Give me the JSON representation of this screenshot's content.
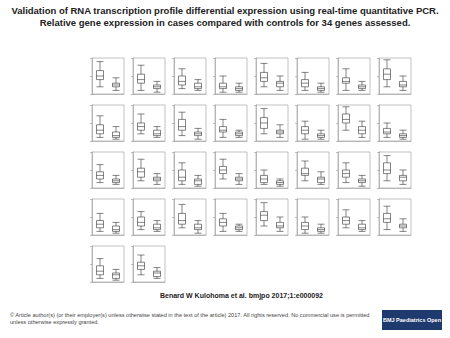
{
  "title": [
    "Validation of RNA transcription profile differential expression using real-time quantitative PCR.",
    "Relative gene expression in cases compared with controls for 34 genes assessed."
  ],
  "citation": "Benard W Kulohoma et al. bmjpo 2017;1:e000092",
  "copyright": "© Article author(s) (or their employer(s) unless otherwise stated in the text of the article) 2017. All rights reserved. No commercial use is permitted unless otherwise expressly granted.",
  "logo": "BMJ Paediatrics Open",
  "chart_data": [
    {
      "type": "boxplot",
      "categories": [
        null,
        null
      ],
      "values": [
        [
          2,
          4,
          5,
          6.5,
          9
        ],
        [
          1,
          2,
          2.5,
          3,
          4.5
        ]
      ],
      "color": "#333333",
      "ylim": [
        0,
        10
      ],
      "yticks": [
        0,
        5,
        10
      ],
      "tick_labels": false
    },
    {
      "type": "boxplot",
      "categories": [
        null,
        null
      ],
      "values": [
        [
          1,
          3,
          4,
          5.5,
          8
        ],
        [
          0.5,
          1.5,
          2,
          2.5,
          3.5
        ]
      ],
      "color": "#333333",
      "ylim": [
        0,
        10
      ],
      "yticks": [
        0,
        5,
        10
      ],
      "tick_labels": false
    },
    {
      "type": "boxplot",
      "categories": [
        null,
        null
      ],
      "values": [
        [
          1.5,
          2.5,
          3.5,
          5,
          7
        ],
        [
          1,
          1.5,
          2,
          3,
          4
        ]
      ],
      "color": "#333333",
      "ylim": [
        0,
        10
      ],
      "yticks": [
        0,
        5,
        10
      ],
      "tick_labels": false
    },
    {
      "type": "boxplot",
      "categories": [
        null,
        null
      ],
      "values": [
        [
          0.5,
          1.5,
          2,
          3,
          5
        ],
        [
          0.5,
          1,
          1.5,
          2,
          3
        ]
      ],
      "color": "#333333",
      "ylim": [
        0,
        10
      ],
      "yticks": [
        0,
        5,
        10
      ],
      "tick_labels": false
    },
    {
      "type": "boxplot",
      "categories": [
        null,
        null
      ],
      "values": [
        [
          2,
          3.5,
          4.5,
          6,
          8.5
        ],
        [
          1,
          2,
          3,
          3.5,
          5
        ]
      ],
      "color": "#333333",
      "ylim": [
        0,
        10
      ],
      "yticks": [
        0,
        5,
        10
      ],
      "tick_labels": false
    },
    {
      "type": "boxplot",
      "categories": [
        null,
        null
      ],
      "values": [
        [
          1,
          2,
          3,
          4,
          6
        ],
        [
          0.5,
          1,
          1.5,
          2,
          3
        ]
      ],
      "color": "#333333",
      "ylim": [
        0,
        10
      ],
      "yticks": [
        0,
        5,
        10
      ],
      "tick_labels": false
    },
    {
      "type": "boxplot",
      "categories": [
        null,
        null
      ],
      "values": [
        [
          1,
          3,
          3.5,
          4.5,
          7
        ],
        [
          1,
          1.5,
          2,
          2.5,
          3.5
        ]
      ],
      "color": "#333333",
      "ylim": [
        0,
        10
      ],
      "yticks": [
        0,
        5,
        10
      ],
      "tick_labels": false
    },
    {
      "type": "boxplot",
      "categories": [
        null,
        null
      ],
      "values": [
        [
          2,
          4,
          5.5,
          7,
          9.5
        ],
        [
          1,
          2,
          2.5,
          3.5,
          5
        ]
      ],
      "color": "#333333",
      "ylim": [
        0,
        10
      ],
      "yticks": [
        0,
        5,
        10
      ],
      "tick_labels": false
    },
    {
      "type": "boxplot",
      "categories": [
        null,
        null
      ],
      "values": [
        [
          1,
          2,
          3,
          4.5,
          7
        ],
        [
          0.5,
          1,
          1.5,
          2.5,
          4
        ]
      ],
      "color": "#333333",
      "ylim": [
        0,
        10
      ],
      "yticks": [
        0,
        5,
        10
      ],
      "tick_labels": false
    },
    {
      "type": "boxplot",
      "categories": [
        null,
        null
      ],
      "values": [
        [
          2,
          3,
          4,
          5,
          7.5
        ],
        [
          1,
          1.5,
          2,
          3,
          4
        ]
      ],
      "color": "#333333",
      "ylim": [
        0,
        10
      ],
      "yticks": [
        0,
        5,
        10
      ],
      "tick_labels": false
    },
    {
      "type": "boxplot",
      "categories": [
        null,
        null
      ],
      "values": [
        [
          1.5,
          3,
          4,
          6,
          8
        ],
        [
          0.5,
          1.5,
          2,
          2.5,
          3.5
        ]
      ],
      "color": "#333333",
      "ylim": [
        0,
        10
      ],
      "yticks": [
        0,
        5,
        10
      ],
      "tick_labels": false
    },
    {
      "type": "boxplot",
      "categories": [
        null,
        null
      ],
      "values": [
        [
          1,
          2.5,
          3,
          4,
          6
        ],
        [
          1,
          1.5,
          2,
          2.5,
          3
        ]
      ],
      "color": "#333333",
      "ylim": [
        0,
        10
      ],
      "yticks": [
        0,
        5,
        10
      ],
      "tick_labels": false
    },
    {
      "type": "boxplot",
      "categories": [
        null,
        null
      ],
      "values": [
        [
          2,
          3.5,
          5,
          6.5,
          9
        ],
        [
          1,
          2,
          2.5,
          3,
          4.5
        ]
      ],
      "color": "#333333",
      "ylim": [
        0,
        10
      ],
      "yticks": [
        0,
        5,
        10
      ],
      "tick_labels": false
    },
    {
      "type": "boxplot",
      "categories": [
        null,
        null
      ],
      "values": [
        [
          0.5,
          2,
          3,
          4,
          5.5
        ],
        [
          0.5,
          1,
          1.5,
          2,
          3
        ]
      ],
      "color": "#333333",
      "ylim": [
        0,
        10
      ],
      "yticks": [
        0,
        5,
        10
      ],
      "tick_labels": false
    },
    {
      "type": "boxplot",
      "categories": [
        null,
        null
      ],
      "values": [
        [
          3,
          5,
          6,
          7.5,
          9.5
        ],
        [
          1,
          2,
          3,
          4,
          5.5
        ]
      ],
      "color": "#333333",
      "ylim": [
        0,
        10
      ],
      "yticks": [
        0,
        5,
        10
      ],
      "tick_labels": false
    },
    {
      "type": "boxplot",
      "categories": [
        null,
        null
      ],
      "values": [
        [
          1,
          2,
          2.5,
          3.5,
          5
        ],
        [
          0.5,
          1,
          1.5,
          2,
          3
        ]
      ],
      "color": "#333333",
      "ylim": [
        0,
        10
      ],
      "yticks": [
        0,
        5,
        10
      ],
      "tick_labels": false
    },
    {
      "type": "boxplot",
      "categories": [
        null,
        null
      ],
      "values": [
        [
          1.5,
          2.5,
          3.5,
          4.5,
          6.5
        ],
        [
          1,
          1.5,
          2,
          2.5,
          3.5
        ]
      ],
      "color": "#333333",
      "ylim": [
        0,
        10
      ],
      "yticks": [
        0,
        5,
        10
      ],
      "tick_labels": false
    },
    {
      "type": "boxplot",
      "categories": [
        null,
        null
      ],
      "values": [
        [
          2,
          3,
          4.5,
          5.5,
          8
        ],
        [
          1,
          2,
          2.5,
          3,
          4
        ]
      ],
      "color": "#333333",
      "ylim": [
        0,
        10
      ],
      "yticks": [
        0,
        5,
        10
      ],
      "tick_labels": false
    },
    {
      "type": "boxplot",
      "categories": [
        null,
        null
      ],
      "values": [
        [
          1,
          2,
          3,
          5,
          7
        ],
        [
          0.5,
          1,
          2,
          2.5,
          3.5
        ]
      ],
      "color": "#333333",
      "ylim": [
        0,
        10
      ],
      "yticks": [
        0,
        5,
        10
      ],
      "tick_labels": false
    },
    {
      "type": "boxplot",
      "categories": [
        null,
        null
      ],
      "values": [
        [
          2.5,
          4,
          5,
          6,
          8
        ],
        [
          1,
          2,
          2.5,
          3,
          4
        ]
      ],
      "color": "#333333",
      "ylim": [
        0,
        10
      ],
      "yticks": [
        0,
        5,
        10
      ],
      "tick_labels": false
    },
    {
      "type": "boxplot",
      "categories": [
        null,
        null
      ],
      "values": [
        [
          1,
          1.5,
          2.5,
          3.5,
          5
        ],
        [
          0.5,
          1,
          1.5,
          2,
          2.5
        ]
      ],
      "color": "#333333",
      "ylim": [
        0,
        10
      ],
      "yticks": [
        0,
        5,
        10
      ],
      "tick_labels": false
    },
    {
      "type": "boxplot",
      "categories": [
        null,
        null
      ],
      "values": [
        [
          2,
          3.5,
          4,
          5.5,
          7.5
        ],
        [
          1,
          1.5,
          2.5,
          3,
          4.5
        ]
      ],
      "color": "#333333",
      "ylim": [
        0,
        10
      ],
      "yticks": [
        0,
        5,
        10
      ],
      "tick_labels": false
    },
    {
      "type": "boxplot",
      "categories": [
        null,
        null
      ],
      "values": [
        [
          1.5,
          3,
          4,
          5,
          7
        ],
        [
          0.5,
          1.5,
          2,
          2.5,
          3.5
        ]
      ],
      "color": "#333333",
      "ylim": [
        0,
        10
      ],
      "yticks": [
        0,
        5,
        10
      ],
      "tick_labels": false
    },
    {
      "type": "boxplot",
      "categories": [
        null,
        null
      ],
      "values": [
        [
          2,
          4,
          5,
          7,
          9
        ],
        [
          1,
          2,
          3,
          3.5,
          5
        ]
      ],
      "color": "#333333",
      "ylim": [
        0,
        10
      ],
      "yticks": [
        0,
        5,
        10
      ],
      "tick_labels": false
    },
    {
      "type": "boxplot",
      "categories": [
        null,
        null
      ],
      "values": [
        [
          1,
          2,
          3,
          4,
          6
        ],
        [
          0.5,
          1,
          1.5,
          2.5,
          3.5
        ]
      ],
      "color": "#333333",
      "ylim": [
        0,
        10
      ],
      "yticks": [
        0,
        5,
        10
      ],
      "tick_labels": false
    },
    {
      "type": "boxplot",
      "categories": [
        null,
        null
      ],
      "values": [
        [
          1.5,
          2.5,
          3.5,
          5,
          6.5
        ],
        [
          1,
          1.5,
          2,
          3,
          4
        ]
      ],
      "color": "#333333",
      "ylim": [
        0,
        10
      ],
      "yticks": [
        0,
        5,
        10
      ],
      "tick_labels": false
    },
    {
      "type": "boxplot",
      "categories": [
        null,
        null
      ],
      "values": [
        [
          2,
          3,
          4,
          6,
          8.5
        ],
        [
          0.5,
          1.5,
          2,
          3,
          4
        ]
      ],
      "color": "#333333",
      "ylim": [
        0,
        10
      ],
      "yticks": [
        0,
        5,
        10
      ],
      "tick_labels": false
    },
    {
      "type": "boxplot",
      "categories": [
        null,
        null
      ],
      "values": [
        [
          1,
          2.5,
          3.5,
          4.5,
          6
        ],
        [
          1,
          1.5,
          2,
          2.5,
          3
        ]
      ],
      "color": "#333333",
      "ylim": [
        0,
        10
      ],
      "yticks": [
        0,
        5,
        10
      ],
      "tick_labels": false
    },
    {
      "type": "boxplot",
      "categories": [
        null,
        null
      ],
      "values": [
        [
          2.5,
          4,
          5.5,
          6.5,
          9
        ],
        [
          1,
          2,
          2.5,
          3.5,
          5
        ]
      ],
      "color": "#333333",
      "ylim": [
        0,
        10
      ],
      "yticks": [
        0,
        5,
        10
      ],
      "tick_labels": false
    },
    {
      "type": "boxplot",
      "categories": [
        null,
        null
      ],
      "values": [
        [
          0.5,
          1.5,
          2.5,
          3.5,
          5
        ],
        [
          0.5,
          1,
          1.5,
          2,
          3
        ]
      ],
      "color": "#333333",
      "ylim": [
        0,
        10
      ],
      "yticks": [
        0,
        5,
        10
      ],
      "tick_labels": false
    },
    {
      "type": "boxplot",
      "categories": [
        null,
        null
      ],
      "values": [
        [
          2,
          3,
          4,
          5,
          7
        ],
        [
          1,
          1.5,
          2,
          3,
          4
        ]
      ],
      "color": "#333333",
      "ylim": [
        0,
        10
      ],
      "yticks": [
        0,
        5,
        10
      ],
      "tick_labels": false
    },
    {
      "type": "boxplot",
      "categories": [
        null,
        null
      ],
      "values": [
        [
          1.5,
          3.5,
          4.5,
          6,
          8
        ],
        [
          1,
          2,
          2.5,
          3,
          4.5
        ]
      ],
      "color": "#333333",
      "ylim": [
        0,
        10
      ],
      "yticks": [
        0,
        5,
        10
      ],
      "tick_labels": false
    },
    {
      "type": "boxplot",
      "categories": [
        null,
        null
      ],
      "values": [
        [
          1,
          2,
          3,
          4.5,
          6.5
        ],
        [
          0.5,
          1,
          2,
          2.5,
          3.5
        ]
      ],
      "color": "#333333",
      "ylim": [
        0,
        10
      ],
      "yticks": [
        0,
        5,
        10
      ],
      "tick_labels": false
    },
    {
      "type": "boxplot",
      "categories": [
        null,
        null
      ],
      "values": [
        [
          2,
          3.5,
          4.5,
          5.5,
          7.5
        ],
        [
          1,
          1.5,
          2.5,
          3,
          4
        ]
      ],
      "color": "#333333",
      "ylim": [
        0,
        10
      ],
      "yticks": [
        0,
        5,
        10
      ],
      "tick_labels": false
    }
  ]
}
